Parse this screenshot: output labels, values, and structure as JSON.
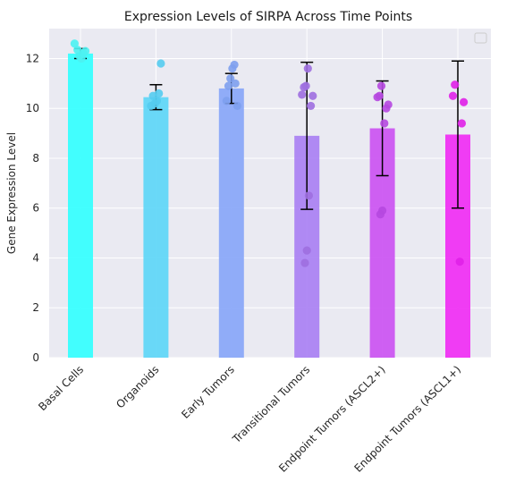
{
  "chart_data": {
    "type": "bar",
    "title": "Expression Levels of SIRPA Across Time Points",
    "xlabel": "",
    "ylabel": "Gene Expression Level",
    "ylim": [
      0,
      13.2
    ],
    "yticks": [
      0,
      2,
      4,
      6,
      8,
      10,
      12
    ],
    "grid": true,
    "legend": "top-right (empty)",
    "categories": [
      "Basal Cells",
      "Organoids",
      "Early Tumors",
      "Transitional Tumors",
      "Endpoint Tumors (ASCL2+)",
      "Endpoint Tumors (ASCL1+)"
    ],
    "values": [
      12.2,
      10.45,
      10.8,
      8.9,
      9.2,
      8.95
    ],
    "errors": [
      0.2,
      0.5,
      0.6,
      2.95,
      1.9,
      2.95
    ],
    "points": [
      [
        12.6,
        12.3,
        12.2,
        12.0,
        12.1,
        12.35
      ],
      [
        11.8,
        10.6,
        10.3,
        10.2,
        10.5,
        10.1
      ],
      [
        11.75,
        11.6,
        11.2,
        10.9,
        10.3,
        10.1,
        11.0
      ],
      [
        11.6,
        10.9,
        10.85,
        10.55,
        10.5,
        10.1,
        6.5,
        4.3,
        3.8
      ],
      [
        10.9,
        10.5,
        10.45,
        10.15,
        10.0,
        9.4,
        5.9,
        5.75
      ],
      [
        10.95,
        10.5,
        10.25,
        9.4,
        3.85
      ]
    ],
    "colors": [
      "#33ffff",
      "#5dd6f7",
      "#88a6f8",
      "#a980f3",
      "#cb52f2",
      "#f02cf4"
    ],
    "point_colors": [
      "#4df2f2",
      "#55ccf0",
      "#7ea0ee",
      "#9e6fe0",
      "#b648e0",
      "#e020e8"
    ]
  }
}
